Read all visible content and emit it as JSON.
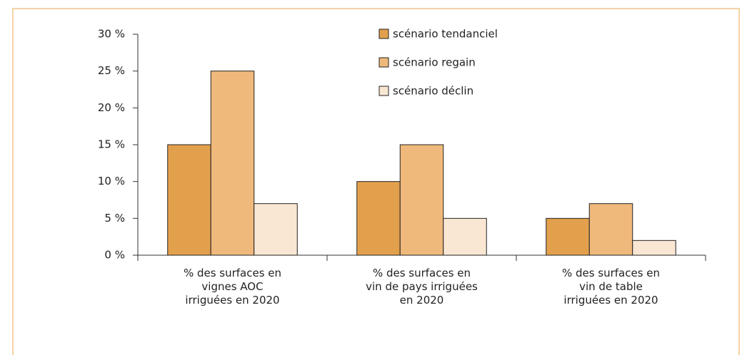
{
  "chart_data": {
    "type": "bar",
    "categories": [
      "% des surfaces en\nvignes AOC\nirriguées en 2020",
      "% des surfaces en\nvin de pays irriguées\nen 2020",
      "% des surfaces en\nvin de table\nirriguées en 2020"
    ],
    "series": [
      {
        "name": "scénario tendanciel",
        "color": "#e3a04c",
        "values": [
          15,
          10,
          5
        ]
      },
      {
        "name": "scénario regain",
        "color": "#f0b97c",
        "values": [
          25,
          15,
          7
        ]
      },
      {
        "name": "scénario déclin",
        "color": "#fae7d3",
        "values": [
          7,
          5,
          2
        ]
      }
    ],
    "ylim": [
      0,
      30
    ],
    "yticks": [
      {
        "value": 0,
        "label": "0 %"
      },
      {
        "value": 5,
        "label": "5 %"
      },
      {
        "value": 10,
        "label": "10 %"
      },
      {
        "value": 15,
        "label": "15 %"
      },
      {
        "value": 20,
        "label": "20 %"
      },
      {
        "value": 25,
        "label": "25 %"
      },
      {
        "value": 30,
        "label": "30 %"
      }
    ],
    "legend": "top-right"
  }
}
